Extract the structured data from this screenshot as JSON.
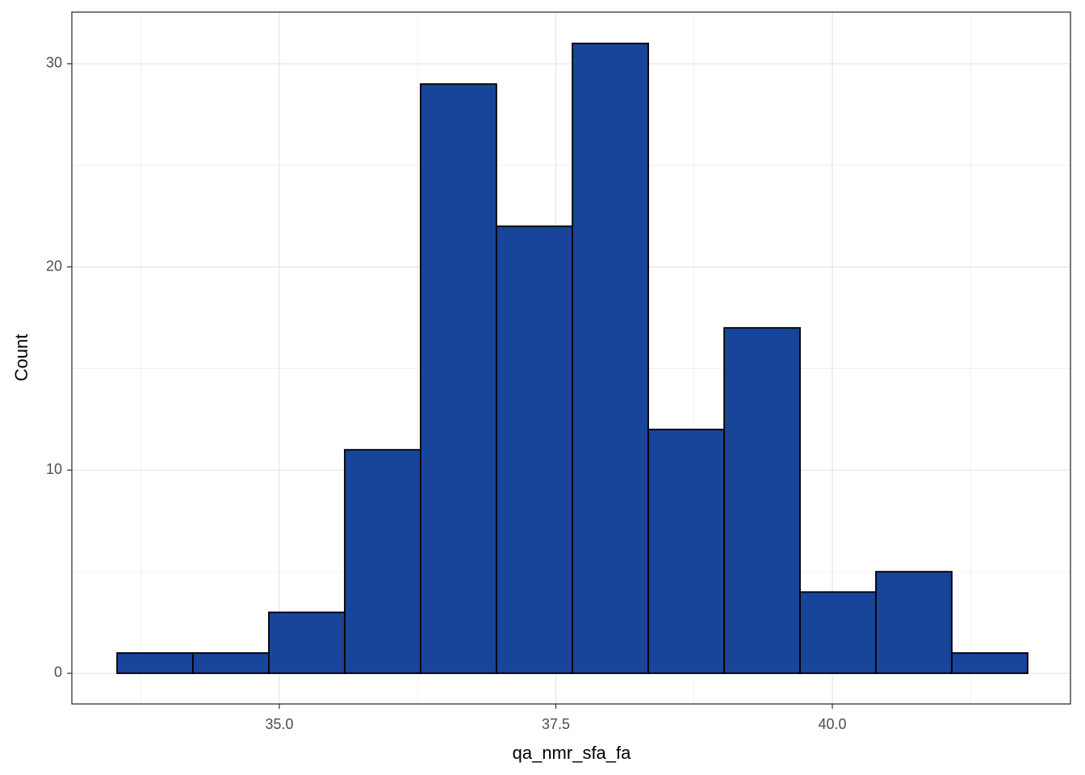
{
  "chart_data": {
    "type": "histogram",
    "x_label": "qa_nmr_sfa_fa",
    "y_label": "Count",
    "bins": [
      33.533,
      34.219,
      34.905,
      35.591,
      36.277,
      36.963,
      37.65,
      38.336,
      39.022,
      39.708,
      40.394,
      41.08,
      41.766
    ],
    "values": [
      1,
      1,
      3,
      11,
      29,
      22,
      31,
      12,
      17,
      4,
      5,
      1
    ],
    "color": "#18449a",
    "edge_color": "#000000",
    "xlim": [
      33.124,
      42.153
    ],
    "ylim": [
      -1.51,
      32.54
    ],
    "xticks": [
      {
        "value": 35,
        "label": "35.0"
      },
      37.5,
      {
        "value": 40,
        "label": "40.0"
      }
    ],
    "yticks": [
      0,
      10,
      20,
      30
    ],
    "x_minor_grid": [
      33.75,
      36.25,
      38.75,
      41.25
    ],
    "y_minor_grid": [
      5,
      15,
      25
    ],
    "grid": true
  }
}
